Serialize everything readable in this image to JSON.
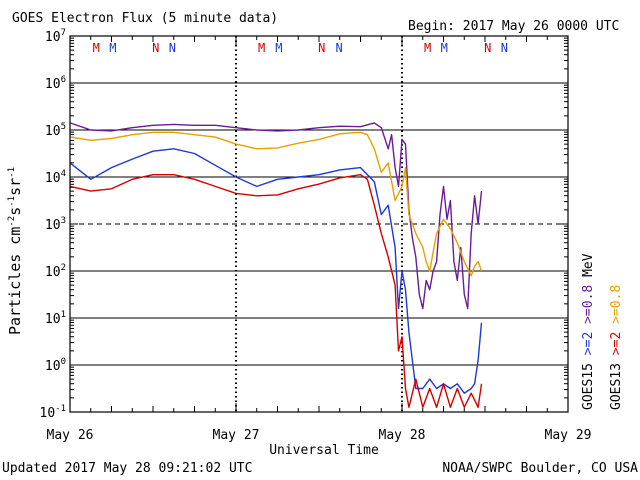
{
  "chart_data": {
    "type": "line",
    "title": "GOES Electron Flux (5 minute data)",
    "begin_label": "Begin: 2017 May 26 0000 UTC",
    "xlabel": "Universal Time",
    "ylabel": {
      "base": "Particles cm",
      "exp1": "-2",
      "mid1": "s",
      "exp2": "-1",
      "mid2": "sr",
      "exp3": "-1"
    },
    "updated": "Updated 2017 May 28 09:21:02 UTC",
    "credit": "NOAA/SWPC Boulder, CO USA",
    "xlim": [
      0,
      72
    ],
    "ylim_log10": [
      -1,
      7
    ],
    "x_ticks": [
      {
        "hour": 0,
        "label": "May 26"
      },
      {
        "hour": 24,
        "label": "May 27"
      },
      {
        "hour": 48,
        "label": "May 28"
      },
      {
        "hour": 72,
        "label": "May 29"
      }
    ],
    "y_ticks": [
      {
        "exp": 7,
        "label": "10",
        "sup": "7"
      },
      {
        "exp": 6,
        "label": "10",
        "sup": "6"
      },
      {
        "exp": 5,
        "label": "10",
        "sup": "5"
      },
      {
        "exp": 4,
        "label": "10",
        "sup": "4"
      },
      {
        "exp": 3,
        "label": "10",
        "sup": "3"
      },
      {
        "exp": 2,
        "label": "10",
        "sup": "2"
      },
      {
        "exp": 1,
        "label": "10",
        "sup": "1"
      },
      {
        "exp": 0,
        "label": "10",
        "sup": "0"
      },
      {
        "exp": -1,
        "label": "10",
        "sup": "-1"
      }
    ],
    "threshold_log10": 3,
    "markers": [
      {
        "hour": 3.8,
        "text": "M",
        "color": "#d40000"
      },
      {
        "hour": 6.2,
        "text": "M",
        "color": "#1c39d6"
      },
      {
        "hour": 12.4,
        "text": "N",
        "color": "#d40000"
      },
      {
        "hour": 14.8,
        "text": "N",
        "color": "#1c39d6"
      },
      {
        "hour": 27.7,
        "text": "M",
        "color": "#d40000"
      },
      {
        "hour": 30.2,
        "text": "M",
        "color": "#1c39d6"
      },
      {
        "hour": 36.4,
        "text": "N",
        "color": "#d40000"
      },
      {
        "hour": 38.9,
        "text": "N",
        "color": "#1c39d6"
      },
      {
        "hour": 51.7,
        "text": "M",
        "color": "#d40000"
      },
      {
        "hour": 54.1,
        "text": "M",
        "color": "#1c39d6"
      },
      {
        "hour": 60.4,
        "text": "N",
        "color": "#d40000"
      },
      {
        "hour": 62.8,
        "text": "N",
        "color": "#1c39d6"
      }
    ],
    "legend": [
      {
        "sat": "GOES15",
        "e2": ">=2",
        "e08": ">=0.8",
        "unit": "MeV",
        "e2_color": "#1c39d6",
        "e08_color": "#6a1b9a"
      },
      {
        "sat": "GOES13",
        "e2": ">=2",
        "e08": ">=0.8",
        "unit": "MeV",
        "e2_color": "#d40000",
        "e08_color": "#e8a000"
      }
    ],
    "series": [
      {
        "name": "GOES15 >=0.8 MeV",
        "color": "#6a1b9a",
        "points": [
          [
            0,
            5.15
          ],
          [
            3,
            5.0
          ],
          [
            6,
            4.98
          ],
          [
            9,
            5.05
          ],
          [
            12,
            5.1
          ],
          [
            15,
            5.12
          ],
          [
            18,
            5.1
          ],
          [
            21,
            5.1
          ],
          [
            24,
            5.05
          ],
          [
            27,
            5.0
          ],
          [
            30,
            4.98
          ],
          [
            33,
            5.0
          ],
          [
            36,
            5.05
          ],
          [
            39,
            5.08
          ],
          [
            42,
            5.07
          ],
          [
            44,
            5.15
          ],
          [
            45,
            5.05
          ],
          [
            46,
            4.6
          ],
          [
            46.5,
            4.9
          ],
          [
            47,
            4.2
          ],
          [
            47.5,
            3.8
          ],
          [
            48,
            4.8
          ],
          [
            48.5,
            4.7
          ],
          [
            49,
            3.3
          ],
          [
            49.5,
            2.7
          ],
          [
            50,
            2.3
          ],
          [
            50.5,
            1.5
          ],
          [
            51,
            1.2
          ],
          [
            51.5,
            1.8
          ],
          [
            52,
            1.6
          ],
          [
            52.5,
            2.0
          ],
          [
            53,
            2.2
          ],
          [
            53.5,
            3.2
          ],
          [
            54,
            3.8
          ],
          [
            54.5,
            3.1
          ],
          [
            55,
            3.5
          ],
          [
            55.5,
            2.2
          ],
          [
            56,
            1.8
          ],
          [
            56.5,
            2.5
          ],
          [
            57,
            1.5
          ],
          [
            57.5,
            1.2
          ],
          [
            58,
            2.8
          ],
          [
            58.5,
            3.6
          ],
          [
            59,
            3.0
          ],
          [
            59.5,
            3.7
          ]
        ]
      },
      {
        "name": "GOES13 >=0.8 MeV",
        "color": "#e8a000",
        "points": [
          [
            0,
            4.85
          ],
          [
            3,
            4.78
          ],
          [
            6,
            4.82
          ],
          [
            9,
            4.9
          ],
          [
            12,
            4.95
          ],
          [
            15,
            4.95
          ],
          [
            18,
            4.9
          ],
          [
            21,
            4.85
          ],
          [
            24,
            4.7
          ],
          [
            27,
            4.6
          ],
          [
            30,
            4.62
          ],
          [
            33,
            4.72
          ],
          [
            36,
            4.8
          ],
          [
            39,
            4.92
          ],
          [
            42,
            4.95
          ],
          [
            43,
            4.9
          ],
          [
            44,
            4.6
          ],
          [
            45,
            4.1
          ],
          [
            46,
            4.3
          ],
          [
            47,
            3.5
          ],
          [
            48,
            3.8
          ],
          [
            48.5,
            4.2
          ],
          [
            49,
            3.2
          ],
          [
            49.5,
            3.0
          ],
          [
            50,
            2.8
          ],
          [
            51,
            2.5
          ],
          [
            51.5,
            2.2
          ],
          [
            52,
            2.0
          ],
          [
            53,
            2.8
          ],
          [
            54,
            3.1
          ],
          [
            55,
            2.9
          ],
          [
            56,
            2.6
          ],
          [
            57,
            2.2
          ],
          [
            58,
            1.9
          ],
          [
            58.5,
            2.1
          ],
          [
            59,
            2.2
          ],
          [
            59.5,
            2.0
          ]
        ]
      },
      {
        "name": "GOES15 >=2 MeV",
        "color": "#1c39d6",
        "points": [
          [
            0,
            4.3
          ],
          [
            3,
            3.95
          ],
          [
            6,
            4.2
          ],
          [
            9,
            4.38
          ],
          [
            12,
            4.55
          ],
          [
            15,
            4.6
          ],
          [
            18,
            4.5
          ],
          [
            21,
            4.25
          ],
          [
            24,
            4.0
          ],
          [
            27,
            3.8
          ],
          [
            30,
            3.95
          ],
          [
            33,
            4.0
          ],
          [
            36,
            4.05
          ],
          [
            39,
            4.15
          ],
          [
            42,
            4.2
          ],
          [
            44,
            3.9
          ],
          [
            45,
            3.2
          ],
          [
            46,
            3.4
          ],
          [
            47,
            2.5
          ],
          [
            47.5,
            1.2
          ],
          [
            48,
            2.0
          ],
          [
            48.5,
            1.6
          ],
          [
            49,
            0.7
          ],
          [
            50,
            -0.5
          ],
          [
            51,
            -0.5
          ],
          [
            52,
            -0.3
          ],
          [
            53,
            -0.5
          ],
          [
            54,
            -0.4
          ],
          [
            55,
            -0.5
          ],
          [
            56,
            -0.4
          ],
          [
            57,
            -0.6
          ],
          [
            58,
            -0.5
          ],
          [
            58.5,
            -0.4
          ],
          [
            59,
            0.1
          ],
          [
            59.5,
            0.9
          ]
        ]
      },
      {
        "name": "GOES13 >=2 MeV",
        "color": "#d40000",
        "points": [
          [
            0,
            3.8
          ],
          [
            3,
            3.7
          ],
          [
            6,
            3.75
          ],
          [
            9,
            3.95
          ],
          [
            12,
            4.05
          ],
          [
            15,
            4.05
          ],
          [
            18,
            3.95
          ],
          [
            21,
            3.8
          ],
          [
            24,
            3.65
          ],
          [
            27,
            3.6
          ],
          [
            30,
            3.62
          ],
          [
            33,
            3.75
          ],
          [
            36,
            3.85
          ],
          [
            39,
            3.98
          ],
          [
            42,
            4.05
          ],
          [
            43,
            3.95
          ],
          [
            44,
            3.4
          ],
          [
            45,
            2.8
          ],
          [
            46,
            2.3
          ],
          [
            47,
            1.7
          ],
          [
            47.5,
            0.3
          ],
          [
            48,
            0.6
          ],
          [
            48.5,
            -0.5
          ],
          [
            49,
            -0.9
          ],
          [
            50,
            -0.3
          ],
          [
            51,
            -0.9
          ],
          [
            52,
            -0.5
          ],
          [
            53,
            -0.9
          ],
          [
            54,
            -0.4
          ],
          [
            55,
            -0.9
          ],
          [
            56,
            -0.5
          ],
          [
            57,
            -0.9
          ],
          [
            58,
            -0.6
          ],
          [
            59,
            -0.9
          ],
          [
            59.5,
            -0.4
          ]
        ]
      }
    ]
  }
}
